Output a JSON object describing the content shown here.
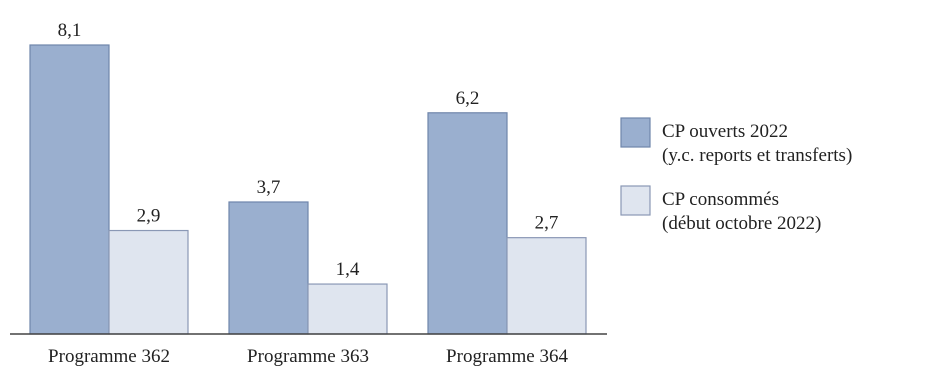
{
  "chart_data": {
    "type": "bar",
    "categories": [
      "Programme 362",
      "Programme 363",
      "Programme 364"
    ],
    "series": [
      {
        "name_lines": [
          "CP ouverts 2022",
          "(y.c. reports et transferts)"
        ],
        "values": [
          8.1,
          3.7,
          6.2
        ],
        "value_labels": [
          "8,1",
          "3,7",
          "6,2"
        ],
        "color": "#9aafcf",
        "stroke": "#6f85ab"
      },
      {
        "name_lines": [
          "CP consommés",
          "(début octobre 2022)"
        ],
        "values": [
          2.9,
          1.4,
          2.7
        ],
        "value_labels": [
          "2,9",
          "1,4",
          "2,7"
        ],
        "color": "#dfe5ef",
        "stroke": "#8a98b5"
      }
    ],
    "ylim": [
      0,
      8.1
    ],
    "grid": false,
    "legend_position": "right"
  }
}
